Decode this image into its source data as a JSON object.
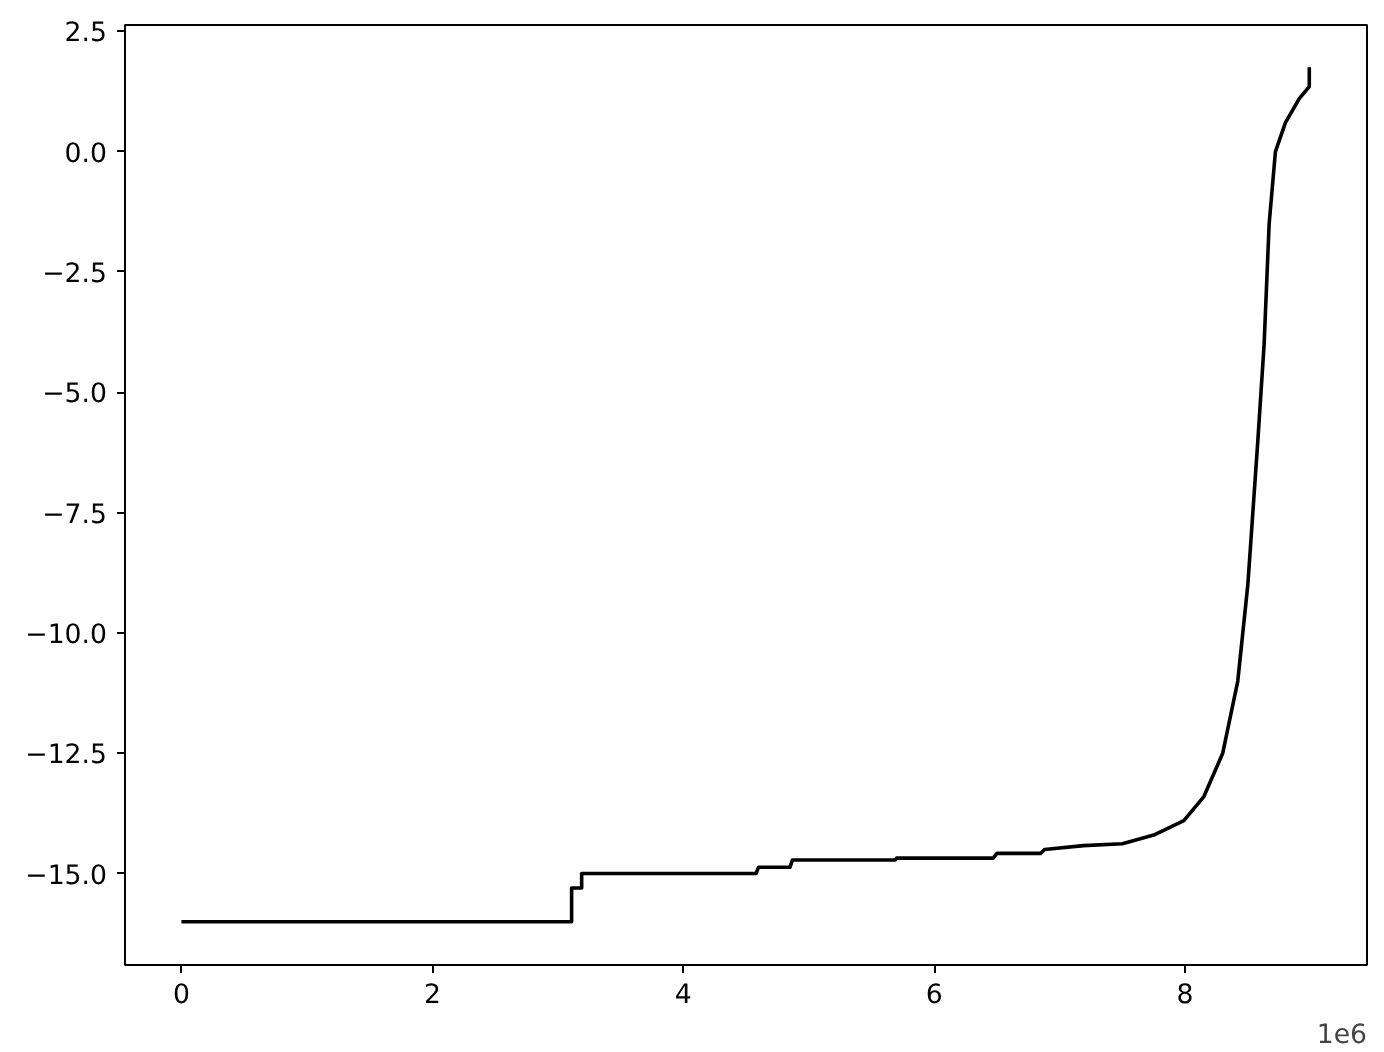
{
  "chart_data": {
    "type": "line",
    "x": [
      0,
      3.11,
      3.11,
      3.19,
      3.19,
      4.58,
      4.6,
      4.85,
      4.87,
      5.69,
      5.7,
      6.47,
      6.5,
      6.85,
      6.88,
      7.19,
      7.5,
      7.75,
      7.99,
      8.15,
      8.3,
      8.42,
      8.5,
      8.58,
      8.63,
      8.67,
      8.72,
      8.8,
      8.91,
      8.99,
      8.99
    ],
    "series": [
      {
        "color": "#000000",
        "values": [
          -16.0,
          -16.0,
          -15.3,
          -15.3,
          -15.0,
          -15.0,
          -14.87,
          -14.87,
          -14.72,
          -14.72,
          -14.68,
          -14.68,
          -14.58,
          -14.58,
          -14.5,
          -14.42,
          -14.38,
          -14.2,
          -13.9,
          -13.4,
          -12.5,
          -11.0,
          -9.0,
          -6.0,
          -4.0,
          -1.5,
          0.0,
          0.6,
          1.1,
          1.35,
          1.75
        ]
      }
    ],
    "xlim": [
      -0.45,
      9.45
    ],
    "xticks": [
      0,
      2,
      4,
      6,
      8
    ],
    "annotations": [
      "1e6"
    ],
    "ylim": [
      -16.9,
      2.63
    ],
    "yticks": [
      {
        "value": -15,
        "label": "−15.0"
      },
      {
        "value": -12.5,
        "label": "−12.5"
      },
      {
        "value": -10,
        "label": "−10.0"
      },
      {
        "value": -7.5,
        "label": "−7.5"
      },
      {
        "value": -5,
        "label": "−5.0"
      },
      {
        "value": -2.5,
        "label": "−2.5"
      },
      {
        "value": 0,
        "label": "0.0"
      },
      {
        "value": 2.5,
        "label": "2.5"
      }
    ],
    "grid": false,
    "marker": "none",
    "line_style": "solid"
  }
}
